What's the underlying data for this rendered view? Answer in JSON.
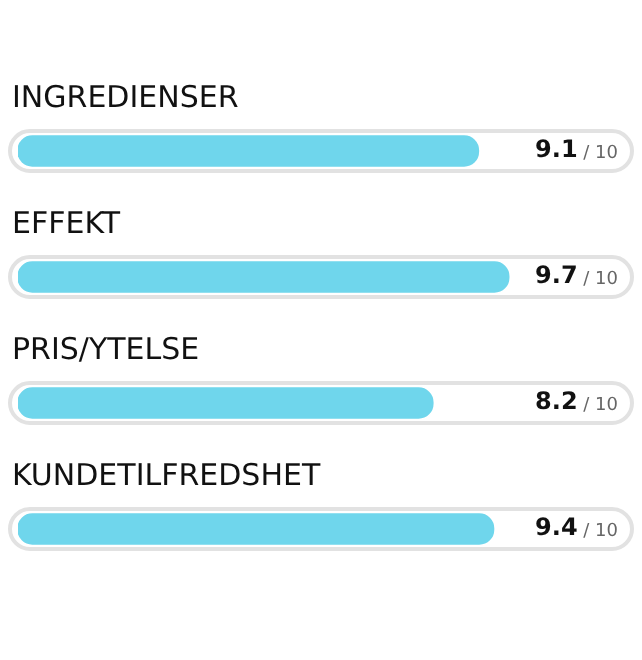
{
  "chart_data": {
    "type": "bar",
    "orientation": "horizontal",
    "categories": [
      "INGREDIENSER",
      "EFFEKT",
      "PRIS/YTELSE",
      "KUNDETILFREDSHET"
    ],
    "values": [
      9.1,
      9.7,
      8.2,
      9.4
    ],
    "color": "#6fd6ec",
    "data_labels": true,
    "annotations": [
      "/ 10",
      "/ 10",
      "/ 10",
      "/ 10"
    ],
    "tick_labels": false
  }
}
